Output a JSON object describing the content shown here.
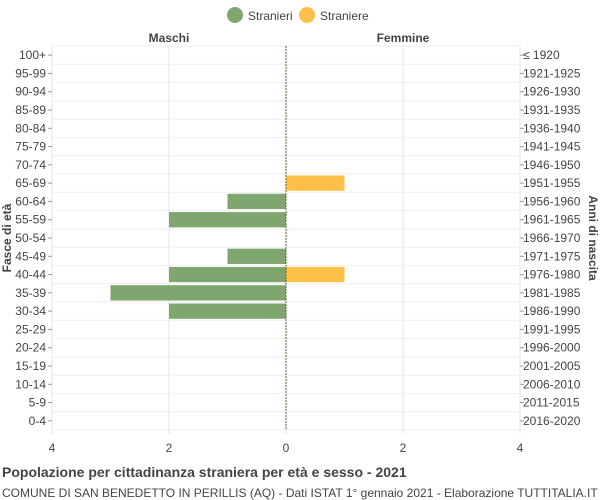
{
  "chart_data": {
    "type": "bar",
    "orientation": "horizontal",
    "title": "Popolazione per cittadinanza straniera per età e sesso - 2021",
    "subtitle": "COMUNE DI SAN BENEDETTO IN PERILLIS (AQ) - Dati ISTAT 1° gennaio 2021 - Elaborazione TUTTITALIA.IT",
    "left_header": "Maschi",
    "right_header": "Femmine",
    "ylabel_left": "Fasce di età",
    "ylabel_right": "Anni di nascita",
    "x_ticks": [
      "4",
      "2",
      "0",
      "2",
      "4"
    ],
    "xlim": [
      -4,
      4
    ],
    "legend_position": "top-center",
    "grid": true,
    "age_groups": [
      "100+",
      "95-99",
      "90-94",
      "85-89",
      "80-84",
      "75-79",
      "70-74",
      "65-69",
      "60-64",
      "55-59",
      "50-54",
      "45-49",
      "40-44",
      "35-39",
      "30-34",
      "25-29",
      "20-24",
      "15-19",
      "10-14",
      "5-9",
      "0-4"
    ],
    "birth_years": [
      "≤ 1920",
      "1921-1925",
      "1926-1930",
      "1931-1935",
      "1936-1940",
      "1941-1945",
      "1946-1950",
      "1951-1955",
      "1956-1960",
      "1961-1965",
      "1966-1970",
      "1971-1975",
      "1976-1980",
      "1981-1985",
      "1986-1990",
      "1991-1995",
      "1996-2000",
      "2001-2005",
      "2006-2010",
      "2011-2015",
      "2016-2020"
    ],
    "series": [
      {
        "name": "Stranieri",
        "color": "#7fa66f",
        "side": "left",
        "values": [
          0,
          0,
          0,
          0,
          0,
          0,
          0,
          0,
          1,
          2,
          0,
          1,
          2,
          3,
          2,
          0,
          0,
          0,
          0,
          0,
          0
        ]
      },
      {
        "name": "Straniere",
        "color": "#ffc04a",
        "side": "right",
        "values": [
          0,
          0,
          0,
          0,
          0,
          0,
          0,
          1,
          0,
          0,
          0,
          0,
          1,
          0,
          0,
          0,
          0,
          0,
          0,
          0,
          0
        ]
      }
    ]
  }
}
